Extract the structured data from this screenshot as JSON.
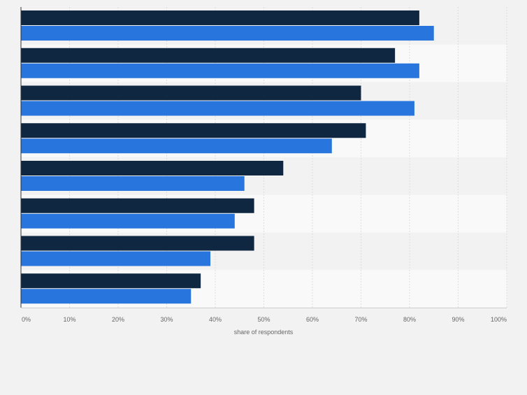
{
  "chart_data": {
    "type": "bar",
    "orientation": "horizontal",
    "categories": [
      "",
      "",
      "",
      "",
      "",
      "",
      "",
      ""
    ],
    "series": [
      {
        "values": [
          82,
          77,
          70,
          71,
          54,
          48,
          48,
          37
        ],
        "color": "#0f2741"
      },
      {
        "values": [
          85,
          82,
          81,
          64,
          46,
          44,
          39,
          35
        ],
        "color": "#2876dd"
      }
    ],
    "xlabel": "share of respondents",
    "ylabel": "",
    "xlim": [
      0,
      100
    ],
    "x_tick_labels": [
      "0%",
      "10%",
      "20%",
      "30%",
      "40%",
      "50%",
      "60%",
      "70%",
      "80%",
      "90%",
      "100%"
    ],
    "grid": true,
    "legend": "none"
  },
  "colors": {
    "page_background": "#f2f2f2",
    "band_dark": "#f2f2f2",
    "band_light": "#f9f9f9",
    "gridline": "#dddddd",
    "axis_line": "#333333",
    "tick_label": "#666666"
  }
}
